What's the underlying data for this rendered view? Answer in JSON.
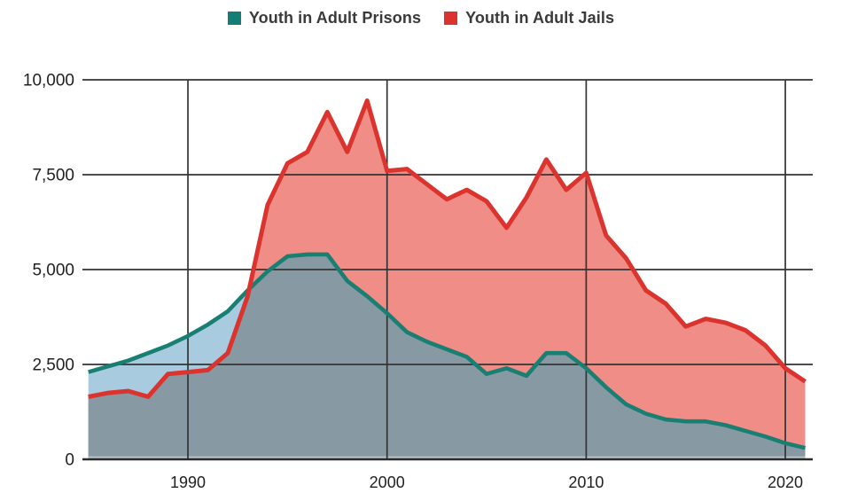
{
  "legend": {
    "items": [
      {
        "label": "Youth in Adult Prisons",
        "color": "#147d75"
      },
      {
        "label": "Youth in Adult Jails",
        "color": "#db342e"
      }
    ]
  },
  "chart_data": {
    "type": "area",
    "title": "",
    "xlabel": "",
    "ylabel": "",
    "x": [
      1985,
      1986,
      1987,
      1988,
      1989,
      1990,
      1991,
      1992,
      1993,
      1994,
      1995,
      1996,
      1997,
      1998,
      1999,
      2000,
      2001,
      2002,
      2003,
      2004,
      2005,
      2006,
      2007,
      2008,
      2009,
      2010,
      2011,
      2012,
      2013,
      2014,
      2015,
      2016,
      2017,
      2018,
      2019,
      2020,
      2021
    ],
    "series": [
      {
        "name": "Youth in Adult Prisons",
        "line_color": "#1a7f73",
        "fill_color": "#a8cbdf",
        "values": [
          2300,
          2450,
          2600,
          2800,
          3000,
          3250,
          3550,
          3900,
          4450,
          4950,
          5350,
          5400,
          5400,
          4700,
          4300,
          3850,
          3350,
          3100,
          2900,
          2700,
          2250,
          2400,
          2200,
          2800,
          2800,
          2400,
          1900,
          1450,
          1200,
          1050,
          1000,
          1000,
          900,
          750,
          600,
          425,
          300
        ]
      },
      {
        "name": "Youth in Adult Jails",
        "line_color": "#db342e",
        "fill_color": "#ef8d86",
        "values": [
          1650,
          1750,
          1800,
          1650,
          2250,
          2300,
          2350,
          2800,
          4300,
          6700,
          7800,
          8100,
          9150,
          8100,
          9450,
          7600,
          7650,
          7250,
          6850,
          7100,
          6800,
          6100,
          6900,
          7900,
          7100,
          7550,
          5900,
          5300,
          4450,
          4100,
          3500,
          3700,
          3600,
          3400,
          3000,
          2400,
          2050
        ]
      }
    ],
    "overlap_fill_color": "#8799a3",
    "xlim": [
      1985,
      2021
    ],
    "ylim": [
      0,
      10000
    ],
    "x_ticks": [
      1990,
      2000,
      2010,
      2020
    ],
    "x_tick_labels": [
      "1990",
      "2000",
      "2010",
      "2020"
    ],
    "y_ticks": [
      0,
      2500,
      5000,
      7500,
      10000
    ],
    "y_tick_labels": [
      "0",
      "2,500",
      "5,000",
      "7,500",
      "10,000"
    ],
    "grid": true,
    "grid_color": "#333333",
    "axis_color": "#2b2b2b",
    "baseline_light_color": "#b9c3c6",
    "legend_position": "top"
  }
}
